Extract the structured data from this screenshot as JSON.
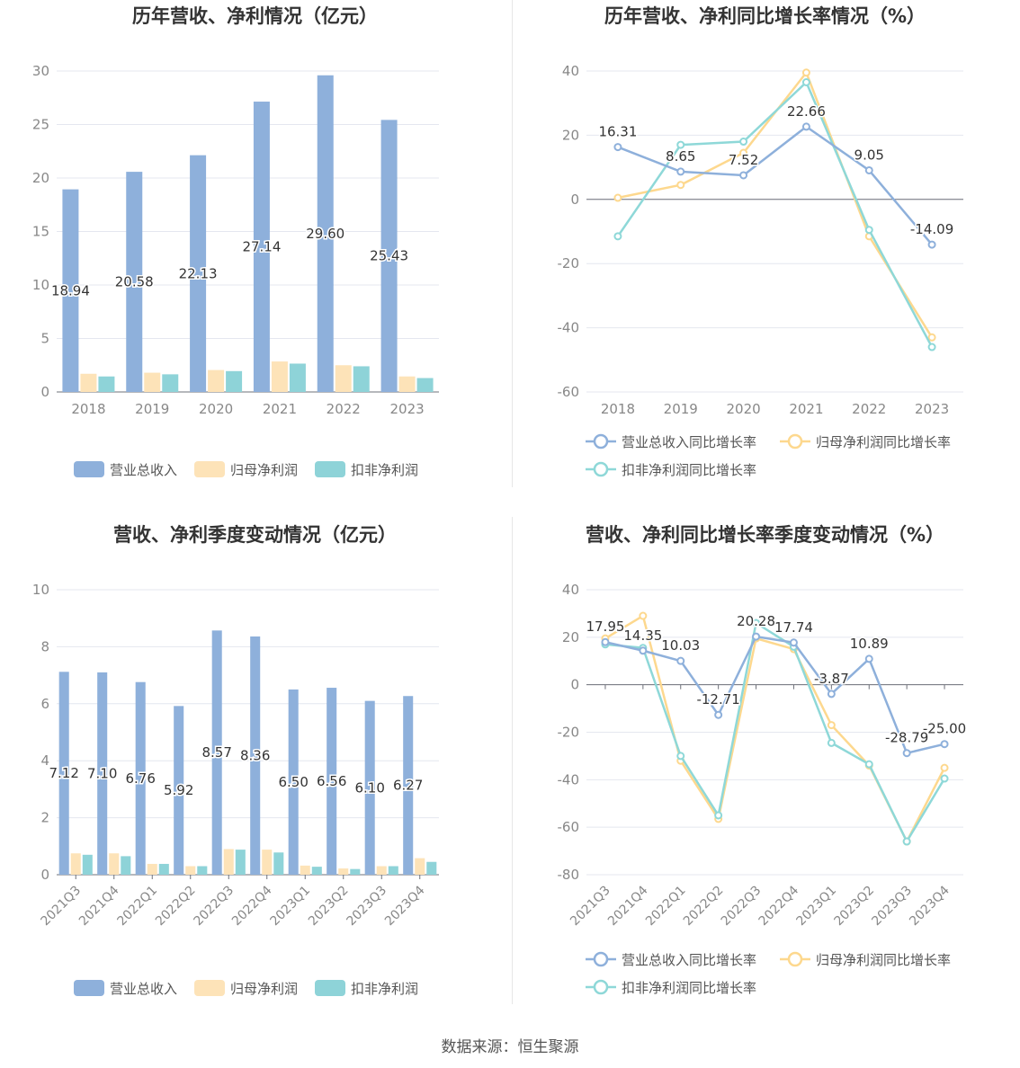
{
  "source": "数据来源：恒生聚源",
  "legend_labels": {
    "bar": [
      "营业总收入",
      "归母净利润",
      "扣非净利润"
    ],
    "line": [
      "营业总收入同比增长率",
      "归母净利润同比增长率",
      "扣非净利润同比增长率"
    ]
  },
  "colors": {
    "revenue": "#8eb0db",
    "net_profit": "#fde3b8",
    "deducted": "#8ed3d8",
    "line_revenue": "#8eb0db",
    "line_net": "#fdd88e",
    "line_deducted": "#8ed8d8"
  },
  "chart_data": [
    {
      "type": "bar",
      "title": "历年营收、净利情况（亿元）",
      "categories": [
        "2018",
        "2019",
        "2020",
        "2021",
        "2022",
        "2023"
      ],
      "ylim": [
        0,
        30
      ],
      "yticks": [
        0,
        5,
        10,
        15,
        20,
        25,
        30
      ],
      "series": [
        {
          "name": "营业总收入",
          "values": [
            18.94,
            20.58,
            22.13,
            27.14,
            29.6,
            25.43
          ],
          "labels": [
            "18.94",
            "20.58",
            "22.13",
            "27.14",
            "29.60",
            "25.43"
          ]
        },
        {
          "name": "归母净利润",
          "values": [
            1.7,
            1.8,
            2.05,
            2.85,
            2.5,
            1.45
          ]
        },
        {
          "name": "扣非净利润",
          "values": [
            1.45,
            1.65,
            1.95,
            2.65,
            2.4,
            1.3
          ]
        }
      ],
      "legend": "bottom"
    },
    {
      "type": "line",
      "title": "历年营收、净利同比增长率情况（%）",
      "categories": [
        "2018",
        "2019",
        "2020",
        "2021",
        "2022",
        "2023"
      ],
      "ylim": [
        -60,
        40
      ],
      "yticks": [
        -60,
        -40,
        -20,
        0,
        20,
        40
      ],
      "series": [
        {
          "name": "营业总收入同比增长率",
          "values": [
            16.31,
            8.65,
            7.52,
            22.66,
            9.05,
            -14.09
          ],
          "labels": [
            "16.31",
            "8.65",
            "7.52",
            "22.66",
            "9.05",
            "-14.09"
          ]
        },
        {
          "name": "归母净利润同比增长率",
          "values": [
            0.5,
            4.5,
            14.5,
            39.5,
            -11.5,
            -43
          ]
        },
        {
          "name": "扣非净利润同比增长率",
          "values": [
            -11.5,
            17,
            18,
            36.5,
            -9.5,
            -46
          ]
        }
      ],
      "legend": "bottom"
    },
    {
      "type": "bar",
      "title": "营收、净利季度变动情况（亿元）",
      "categories": [
        "2021Q3",
        "2021Q4",
        "2022Q1",
        "2022Q2",
        "2022Q3",
        "2022Q4",
        "2023Q1",
        "2023Q2",
        "2023Q3",
        "2023Q4"
      ],
      "ylim": [
        0,
        10
      ],
      "yticks": [
        0,
        2,
        4,
        6,
        8,
        10
      ],
      "series": [
        {
          "name": "营业总收入",
          "values": [
            7.12,
            7.1,
            6.76,
            5.92,
            8.57,
            8.36,
            6.5,
            6.56,
            6.1,
            6.27
          ],
          "labels": [
            "7.12",
            "7.10",
            "6.76",
            "5.92",
            "8.57",
            "8.36",
            "6.50",
            "6.56",
            "6.10",
            "6.27"
          ]
        },
        {
          "name": "归母净利润",
          "values": [
            0.75,
            0.75,
            0.38,
            0.3,
            0.9,
            0.88,
            0.32,
            0.22,
            0.3,
            0.58
          ]
        },
        {
          "name": "扣非净利润",
          "values": [
            0.7,
            0.65,
            0.38,
            0.3,
            0.88,
            0.78,
            0.28,
            0.2,
            0.3,
            0.45
          ]
        }
      ],
      "legend": "bottom"
    },
    {
      "type": "line",
      "title": "营收、净利同比增长率季度变动情况（%）",
      "categories": [
        "2021Q3",
        "2021Q4",
        "2022Q1",
        "2022Q2",
        "2022Q3",
        "2022Q4",
        "2023Q1",
        "2023Q2",
        "2023Q3",
        "2023Q4"
      ],
      "ylim": [
        -80,
        40
      ],
      "yticks": [
        -80,
        -60,
        -40,
        -20,
        0,
        20,
        40
      ],
      "series": [
        {
          "name": "营业总收入同比增长率",
          "values": [
            17.95,
            14.35,
            10.03,
            -12.71,
            20.28,
            17.74,
            -3.87,
            10.89,
            -28.79,
            -25.0
          ],
          "labels": [
            "17.95",
            "14.35",
            "10.03",
            "-12.71",
            "20.28",
            "17.74",
            "-3.87",
            "10.89",
            "-28.79",
            "-25.00"
          ]
        },
        {
          "name": "归母净利润同比增长率",
          "values": [
            19.5,
            29,
            -32,
            -56.5,
            19.5,
            15,
            -17,
            -34,
            -66,
            -35
          ]
        },
        {
          "name": "扣非净利润同比增长率",
          "values": [
            17,
            15.5,
            -30,
            -55,
            26,
            16,
            -24.5,
            -33.5,
            -66,
            -39.5
          ]
        }
      ],
      "legend": "bottom"
    }
  ]
}
